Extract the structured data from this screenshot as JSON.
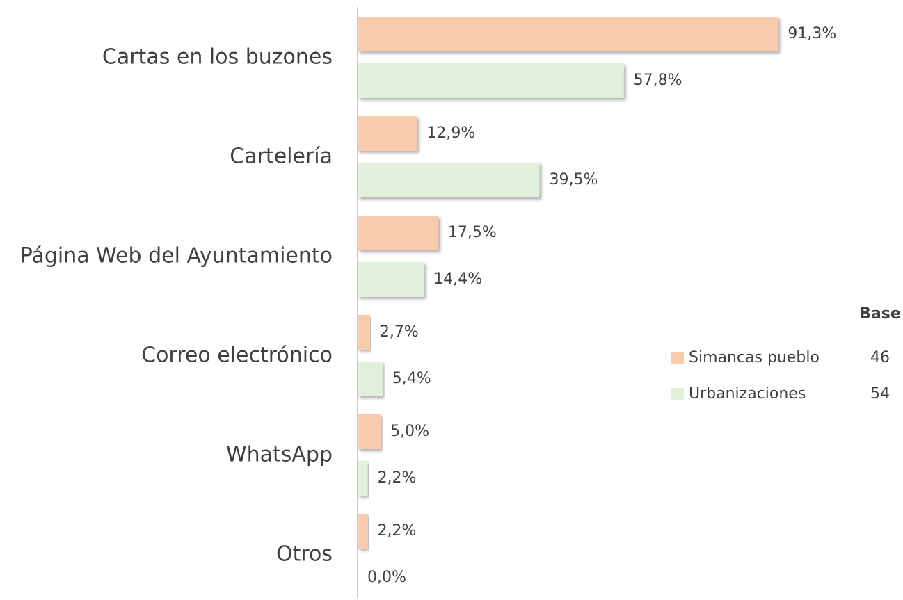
{
  "chart_data": {
    "type": "hbar",
    "categories": [
      "Cartas en los buzones",
      "Cartelería",
      "Página Web del Ayuntamiento",
      "Correo electrónico",
      "WhatsApp",
      "Otros"
    ],
    "series": [
      {
        "name": "Simancas pueblo",
        "color": "#f8cbad",
        "base": 46,
        "values": [
          91.3,
          12.9,
          17.5,
          2.7,
          5.0,
          2.2
        ],
        "value_labels": [
          "91,3%",
          "12,9%",
          "17,5%",
          "2,7%",
          "5,0%",
          "2,2%"
        ]
      },
      {
        "name": "Urbanizaciones",
        "color": "#e2efda",
        "base": 54,
        "values": [
          57.8,
          39.5,
          14.4,
          5.4,
          2.2,
          0.0
        ],
        "value_labels": [
          "57,8%",
          "39,5%",
          "14,4%",
          "5,4%",
          "2,2%",
          "0,0%"
        ]
      }
    ],
    "xlim": [
      0,
      100
    ],
    "legend": {
      "title": "Base",
      "position": "right"
    }
  }
}
